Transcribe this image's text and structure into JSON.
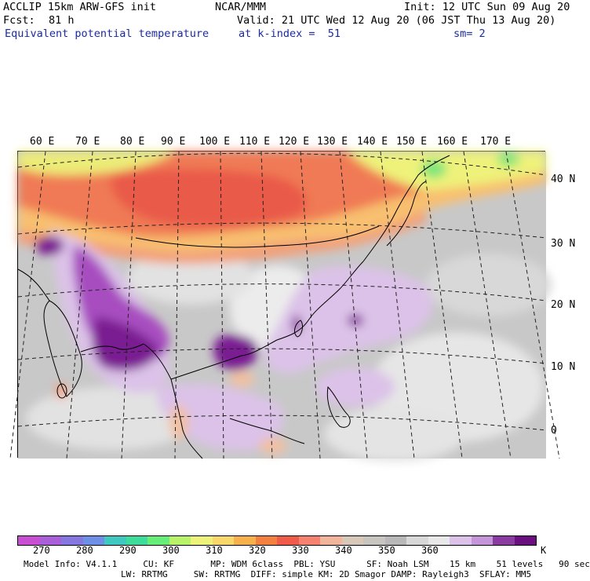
{
  "header": {
    "model": "ACCLIP 15km ARW-GFS init",
    "org": "NCAR/MMM",
    "init": "Init: 12 UTC Sun 09 Aug 20",
    "fcst_label": "Fcst:",
    "fcst_value": "81 h",
    "valid": "Valid: 21 UTC Wed 12 Aug 20 (06 JST Thu 13 Aug 20)",
    "field": "Equivalent potential temperature",
    "level": "at k-index =  51",
    "smooth": "sm= 2"
  },
  "map": {
    "lon_labels": [
      "60 E",
      "70 E",
      "80 E",
      "90 E",
      "100 E",
      "110 E",
      "120 E",
      "130 E",
      "140 E",
      "150 E",
      "160 E",
      "170 E"
    ],
    "lat_labels": [
      "40 N",
      "30 N",
      "20 N",
      "10 N",
      "0"
    ]
  },
  "colorbar": {
    "colors": [
      "#c84fd1",
      "#a85fd8",
      "#8478e0",
      "#6d8fe6",
      "#3ec8c0",
      "#3edc9a",
      "#66ee78",
      "#b8f36a",
      "#ecf27a",
      "#f8d86a",
      "#f6b04c",
      "#f48040",
      "#f05a48",
      "#f4826e",
      "#f2b49a",
      "#d8c8b8",
      "#c8c4c0",
      "#b8b8b8",
      "#d8d8d8",
      "#e8e8e8",
      "#dcc2e8",
      "#c495d8",
      "#8a3aa0",
      "#6a0f80"
    ],
    "labels": [
      "270",
      "280",
      "290",
      "300",
      "310",
      "320",
      "330",
      "340",
      "350",
      "360",
      "K"
    ]
  },
  "footer": {
    "line1": "Model Info: V4.1.1     CU: KF       MP: WDM 6class  PBL: YSU      SF: Noah LSM    15 km    51 levels   90 sec",
    "line2": "LW: RRTMG     SW: RRTMG  DIFF: simple KM: 2D Smagor DAMP: Rayleigh3  SFLAY: MM5"
  }
}
